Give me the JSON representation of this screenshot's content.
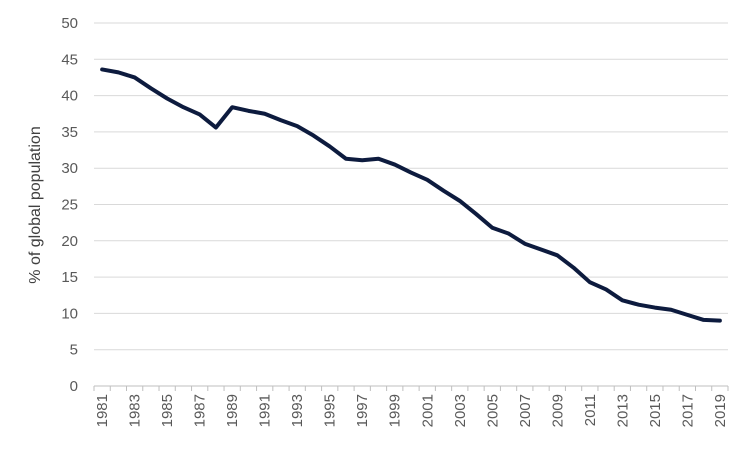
{
  "chart_data": {
    "type": "line",
    "title": "",
    "xlabel": "",
    "ylabel": "% of global population",
    "ylim": [
      0,
      50
    ],
    "yticks": [
      "0",
      "5",
      "10",
      "15",
      "20",
      "25",
      "30",
      "35",
      "40",
      "45",
      "50"
    ],
    "grid": true,
    "legend": "none",
    "line_color": "#0d1b3e",
    "x": [
      1981,
      1982,
      1983,
      1984,
      1985,
      1986,
      1987,
      1988,
      1989,
      1990,
      1991,
      1992,
      1993,
      1994,
      1995,
      1996,
      1997,
      1998,
      1999,
      2000,
      2001,
      2002,
      2003,
      2004,
      2005,
      2006,
      2007,
      2008,
      2009,
      2010,
      2011,
      2012,
      2013,
      2014,
      2015,
      2016,
      2017,
      2018,
      2019
    ],
    "xtick_labels": [
      "1981",
      "1983",
      "1985",
      "1987",
      "1989",
      "1991",
      "1993",
      "1995",
      "1997",
      "1999",
      "2001",
      "2003",
      "2005",
      "2007",
      "2009",
      "2011",
      "2013",
      "2015",
      "2017",
      "2019"
    ],
    "series": [
      {
        "values": [
          43.6,
          43.2,
          42.5,
          41.0,
          39.6,
          38.4,
          37.4,
          35.6,
          38.4,
          37.9,
          37.5,
          36.6,
          35.8,
          34.5,
          33.0,
          31.3,
          31.1,
          31.3,
          30.5,
          29.4,
          28.4,
          26.9,
          25.5,
          23.7,
          21.8,
          21.0,
          19.6,
          18.8,
          18.0,
          16.3,
          14.3,
          13.3,
          11.8,
          11.2,
          10.8,
          10.5,
          9.8,
          9.1,
          9.0
        ]
      }
    ]
  }
}
